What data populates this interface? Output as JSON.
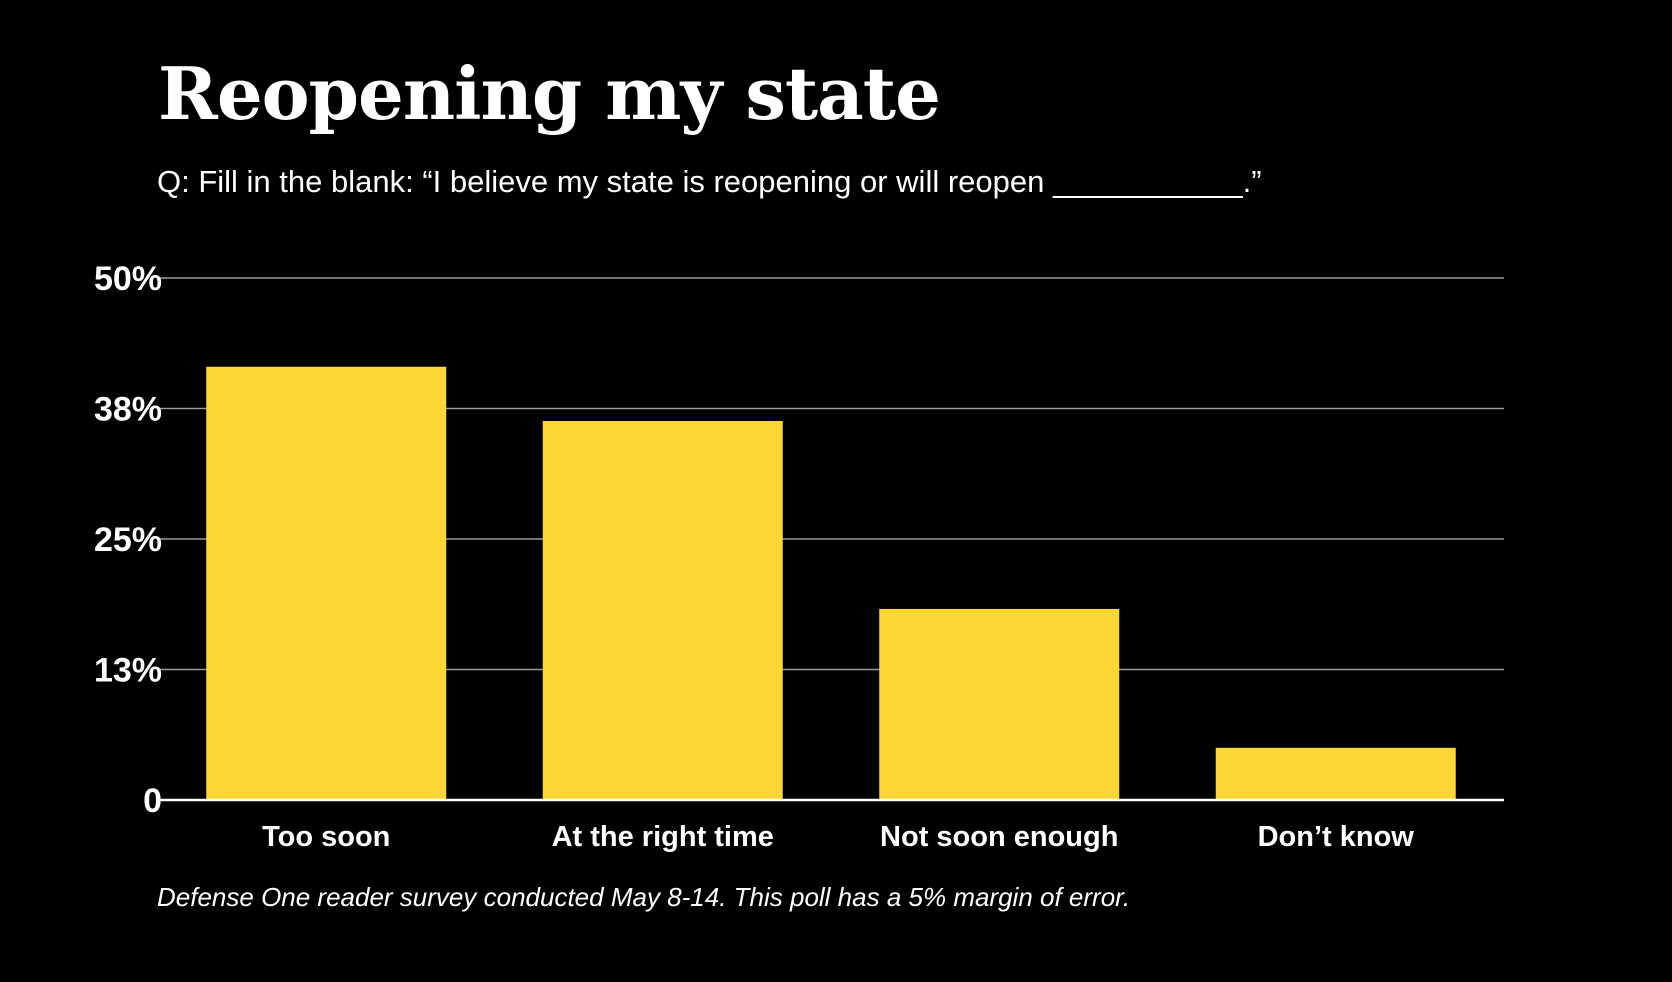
{
  "chart_data": {
    "type": "bar",
    "title": "Reopening my state",
    "subtitle": "Q: Fill in the blank: “I believe my state is reopening or will reopen ___________.”",
    "categories": [
      "Too soon",
      "At the right time",
      "Not soon enough",
      "Don’t know"
    ],
    "values": [
      41.5,
      36.3,
      18.3,
      5.0
    ],
    "ylim": [
      0,
      50
    ],
    "yticks": [
      {
        "value": 0,
        "label": "0"
      },
      {
        "value": 12.5,
        "label": "13%"
      },
      {
        "value": 25,
        "label": "25%"
      },
      {
        "value": 37.5,
        "label": "38%"
      },
      {
        "value": 50,
        "label": "50%"
      }
    ],
    "xlabel": "",
    "ylabel": "",
    "grid": true,
    "footnote": "Defense One reader survey conducted May 8-14. This poll has a 5% margin of error.",
    "colors": {
      "background": "#000000",
      "bar": "#fdd835",
      "gridline": "#9a9a9a",
      "baseline": "#ffffff",
      "text": "#ffffff"
    }
  }
}
